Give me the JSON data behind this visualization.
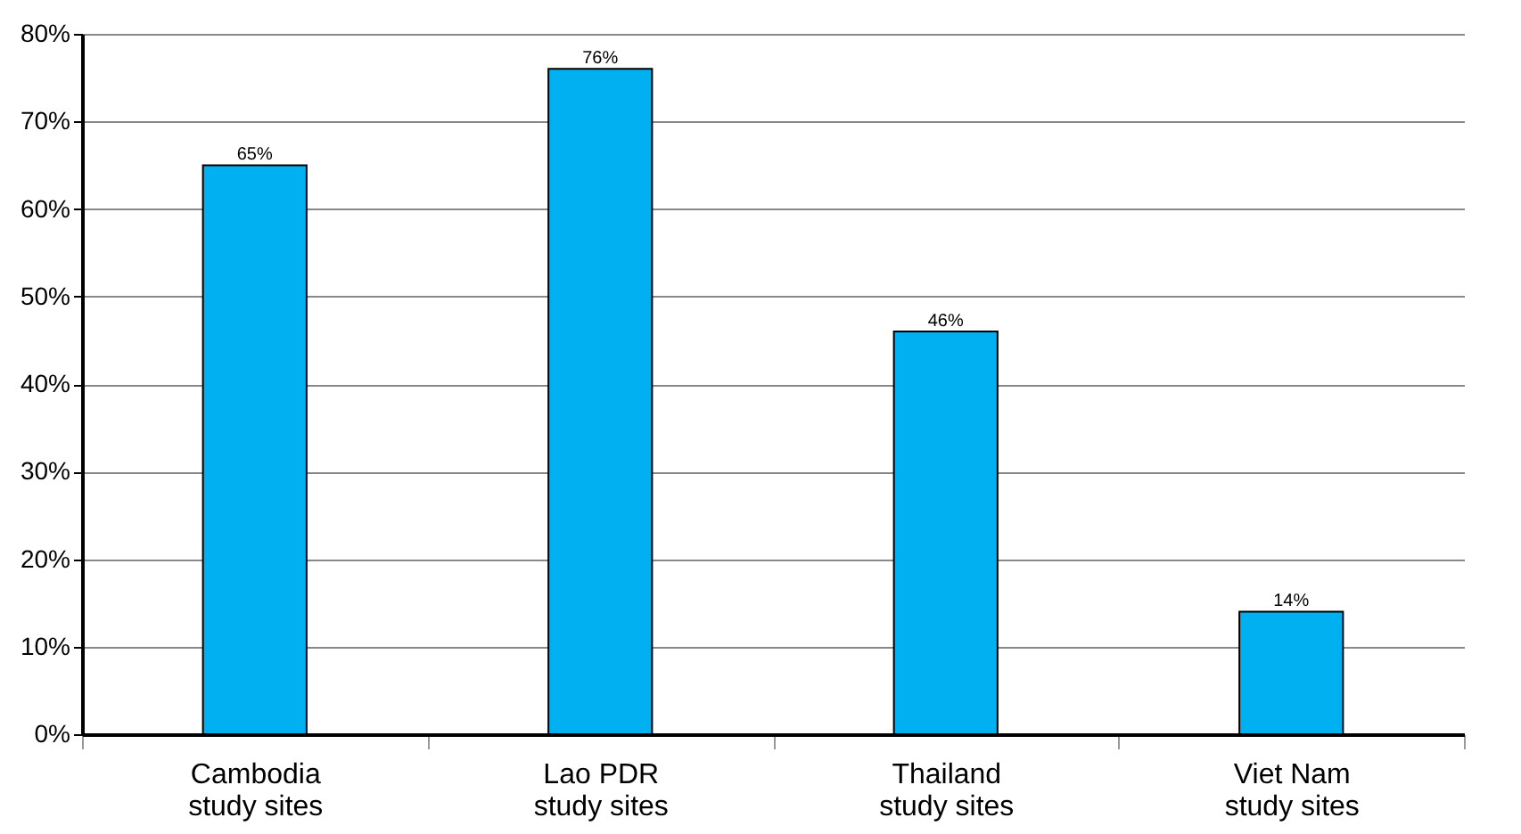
{
  "chart_data": {
    "type": "bar",
    "categories": [
      "Cambodia\nstudy sites",
      "Lao PDR\nstudy sites",
      "Thailand\nstudy sites",
      "Viet Nam\nstudy sites"
    ],
    "values": [
      65,
      76,
      46,
      14
    ],
    "value_labels": [
      "65%",
      "76%",
      "46%",
      "14%"
    ],
    "color": "#00b0f0",
    "ylim": [
      0,
      80
    ],
    "yticks": [
      {
        "value": 0,
        "label": "0%"
      },
      {
        "value": 10,
        "label": "10%"
      },
      {
        "value": 20,
        "label": "20%"
      },
      {
        "value": 30,
        "label": "30%"
      },
      {
        "value": 40,
        "label": "40%"
      },
      {
        "value": 50,
        "label": "50%"
      },
      {
        "value": 60,
        "label": "60%"
      },
      {
        "value": 70,
        "label": "70%"
      },
      {
        "value": 80,
        "label": "80%"
      }
    ],
    "grid": "y"
  }
}
